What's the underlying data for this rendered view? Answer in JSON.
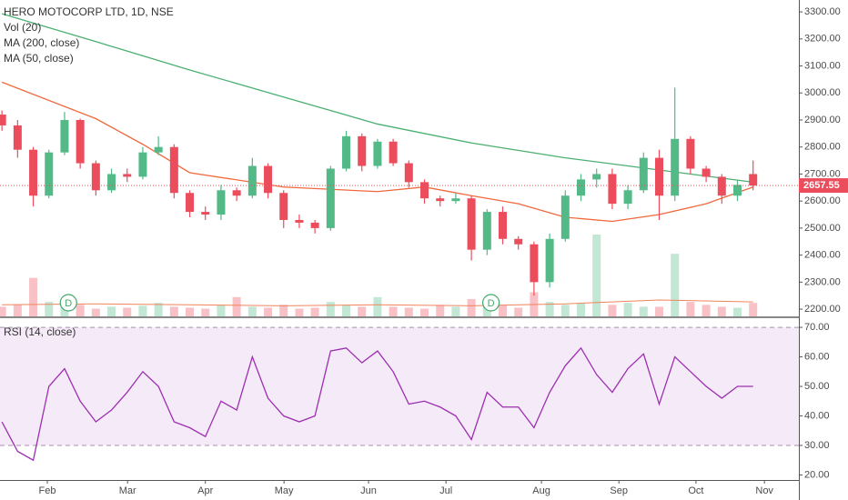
{
  "chart_data": [
    {
      "type": "candlestick",
      "title": "HERO MOTOCORP LTD, 1D, NSE",
      "x": [
        0,
        4,
        8,
        12,
        16,
        20,
        24,
        28,
        32,
        36,
        40,
        44,
        48,
        52,
        56,
        60,
        64,
        68,
        72,
        76,
        80,
        84,
        88,
        92,
        96,
        100,
        104,
        108,
        112,
        116,
        120,
        124,
        128,
        132,
        136,
        140,
        144,
        148,
        152,
        156,
        160,
        164,
        168,
        172,
        176,
        180,
        184,
        188,
        192
      ],
      "open": [
        2920,
        2880,
        2790,
        2620,
        2780,
        2900,
        2740,
        2640,
        2700,
        2690,
        2780,
        2800,
        2630,
        2560,
        2550,
        2640,
        2620,
        2730,
        2630,
        2530,
        2520,
        2500,
        2720,
        2840,
        2730,
        2820,
        2740,
        2670,
        2610,
        2600,
        2610,
        2420,
        2560,
        2460,
        2440,
        2300,
        2460,
        2620,
        2680,
        2700,
        2590,
        2640,
        2760,
        2620,
        2830,
        2720,
        2690,
        2620,
        2700
      ],
      "high": [
        2935,
        2900,
        2800,
        2790,
        2930,
        2905,
        2750,
        2720,
        2720,
        2800,
        2840,
        2810,
        2640,
        2580,
        2660,
        2650,
        2760,
        2740,
        2640,
        2550,
        2530,
        2730,
        2860,
        2850,
        2830,
        2830,
        2750,
        2680,
        2620,
        2630,
        2620,
        2570,
        2580,
        2470,
        2450,
        2480,
        2640,
        2700,
        2720,
        2720,
        2660,
        2780,
        2790,
        3020,
        2840,
        2730,
        2700,
        2680,
        2750
      ],
      "low": [
        2860,
        2760,
        2580,
        2610,
        2770,
        2720,
        2620,
        2630,
        2670,
        2680,
        2770,
        2610,
        2540,
        2530,
        2530,
        2600,
        2610,
        2610,
        2500,
        2500,
        2480,
        2490,
        2710,
        2710,
        2720,
        2730,
        2650,
        2590,
        2580,
        2590,
        2380,
        2400,
        2440,
        2420,
        2250,
        2280,
        2450,
        2600,
        2650,
        2570,
        2570,
        2630,
        2530,
        2600,
        2700,
        2670,
        2590,
        2600,
        2640
      ],
      "close": [
        2880,
        2790,
        2620,
        2780,
        2900,
        2740,
        2640,
        2700,
        2690,
        2780,
        2800,
        2630,
        2560,
        2550,
        2640,
        2620,
        2730,
        2630,
        2530,
        2520,
        2500,
        2720,
        2840,
        2730,
        2820,
        2740,
        2670,
        2610,
        2600,
        2610,
        2420,
        2560,
        2460,
        2440,
        2300,
        2460,
        2620,
        2680,
        2700,
        2590,
        2640,
        2760,
        2620,
        2830,
        2720,
        2690,
        2620,
        2660,
        2657.55
      ],
      "up_color": "#53b987",
      "down_color": "#eb4d5c",
      "volume": {
        "name": "Vol (20)",
        "values": [
          10,
          12,
          40,
          15,
          11,
          12,
          8,
          10,
          9,
          11,
          14,
          10,
          9,
          8,
          12,
          20,
          10,
          9,
          12,
          8,
          9,
          15,
          12,
          10,
          20,
          10,
          9,
          8,
          12,
          10,
          18,
          10,
          12,
          9,
          25,
          15,
          12,
          14,
          85,
          12,
          14,
          10,
          10,
          65,
          15,
          12,
          10,
          9,
          14
        ],
        "ma_x": [
          0,
          24,
          48,
          72,
          96,
          120,
          144,
          168,
          192
        ],
        "ma": [
          12,
          13,
          12,
          11,
          12,
          11,
          13,
          17,
          15
        ],
        "ma_color": "#f0845c"
      },
      "series": [
        {
          "name": "MA (200, close)",
          "color": "#4caf72",
          "x": [
            0,
            24,
            48,
            72,
            96,
            120,
            144,
            168,
            192
          ],
          "values": [
            3293,
            3190,
            3085,
            2985,
            2885,
            2815,
            2760,
            2715,
            2670
          ]
        },
        {
          "name": "MA (50, close)",
          "color": "#f0693c",
          "x": [
            0,
            24,
            36,
            48,
            72,
            96,
            108,
            120,
            132,
            144,
            156,
            168,
            180,
            192
          ],
          "values": [
            3040,
            2905,
            2810,
            2705,
            2652,
            2635,
            2652,
            2620,
            2590,
            2540,
            2525,
            2550,
            2590,
            2652
          ]
        }
      ],
      "dividends": [
        {
          "x": 17,
          "label": "D"
        },
        {
          "x": 125,
          "label": "D"
        }
      ],
      "last_price": 2657.55,
      "last_color": "#eb4d5c",
      "xlim": [
        -0.5,
        203.7
      ],
      "ylim": [
        2170,
        3344
      ],
      "yticks": [
        {
          "value": 2200,
          "label": "2200.00"
        },
        {
          "value": 2300,
          "label": "2300.00"
        },
        {
          "value": 2400,
          "label": "2400.00"
        },
        {
          "value": 2500,
          "label": "2500.00"
        },
        {
          "value": 2600,
          "label": "2600.00"
        },
        {
          "value": 2700,
          "label": "2700.00"
        },
        {
          "value": 2800,
          "label": "2800.00"
        },
        {
          "value": 2900,
          "label": "2900.00"
        },
        {
          "value": 3000,
          "label": "3000.00"
        },
        {
          "value": 3100,
          "label": "3100.00"
        },
        {
          "value": 3200,
          "label": "3200.00"
        },
        {
          "value": 3300,
          "label": "3300.00"
        }
      ]
    },
    {
      "type": "line",
      "title": "RSI (14, close)",
      "color": "#9c2fb0",
      "band": [
        30,
        70
      ],
      "x": [
        0,
        4,
        8,
        12,
        16,
        20,
        24,
        28,
        32,
        36,
        40,
        44,
        48,
        52,
        56,
        60,
        64,
        68,
        72,
        76,
        80,
        84,
        88,
        92,
        96,
        100,
        104,
        108,
        112,
        116,
        120,
        124,
        128,
        132,
        136,
        140,
        144,
        148,
        152,
        156,
        160,
        164,
        168,
        172,
        176,
        180,
        184,
        188,
        192
      ],
      "values": [
        38,
        28,
        25,
        50,
        56,
        45,
        38,
        42,
        48,
        55,
        50,
        38,
        36,
        33,
        45,
        42,
        60,
        46,
        40,
        38,
        40,
        62,
        63,
        58,
        62,
        55,
        44,
        45,
        43,
        40,
        32,
        48,
        43,
        43,
        36,
        48,
        57,
        63,
        54,
        48,
        56,
        61,
        44,
        60,
        55,
        50,
        46,
        50,
        50
      ],
      "xlim": [
        -0.5,
        203.7
      ],
      "ylim": [
        18.3,
        73.1
      ],
      "yticks": [
        {
          "value": 20,
          "label": "20.00"
        },
        {
          "value": 30,
          "label": "30.00"
        },
        {
          "value": 40,
          "label": "40.00"
        },
        {
          "value": 50,
          "label": "50.00"
        },
        {
          "value": 60,
          "label": "60.00"
        },
        {
          "value": 70,
          "label": "70.00"
        }
      ],
      "xticks": [
        {
          "value": 11.6,
          "label": "Feb"
        },
        {
          "value": 32.1,
          "label": "Mar"
        },
        {
          "value": 52,
          "label": "Apr"
        },
        {
          "value": 72.1,
          "label": "May"
        },
        {
          "value": 93.7,
          "label": "Jun"
        },
        {
          "value": 113.5,
          "label": "Jul"
        },
        {
          "value": 137.9,
          "label": "Aug"
        },
        {
          "value": 157.7,
          "label": "Sep"
        },
        {
          "value": 177.4,
          "label": "Oct"
        },
        {
          "value": 194.9,
          "label": "Nov"
        }
      ]
    }
  ]
}
